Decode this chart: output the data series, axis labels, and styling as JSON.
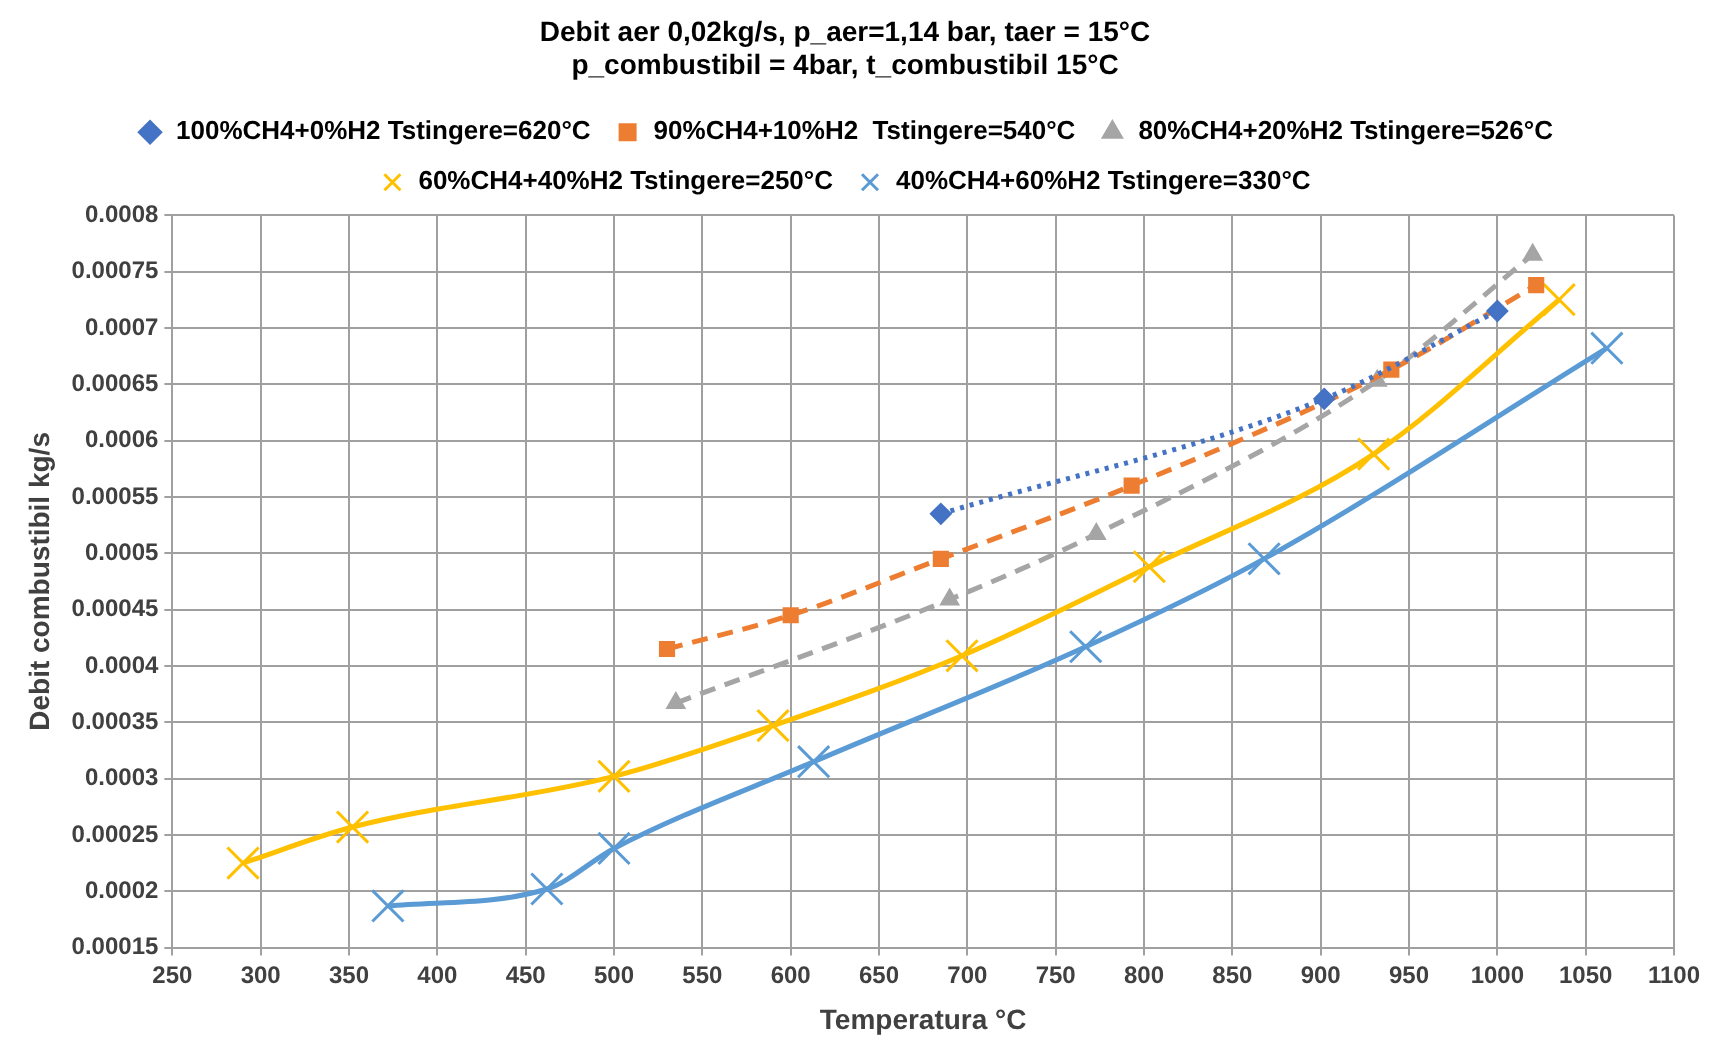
{
  "chart_data": {
    "type": "line",
    "title": [
      "Debit aer 0,02kg/s, p_aer=1,14 bar, taer = 15°C",
      "p_combustibil = 4bar, t_combustibil 15°C"
    ],
    "xlabel": "Temperatura °C",
    "ylabel": "Debit combustibil kg/s",
    "xlim": [
      250,
      1100
    ],
    "xticks": [
      250,
      300,
      350,
      400,
      450,
      500,
      550,
      600,
      650,
      700,
      750,
      800,
      850,
      900,
      950,
      1000,
      1050,
      1100
    ],
    "ylim": [
      0.00015,
      0.0008
    ],
    "yticks": [
      0.00015,
      0.0002,
      0.00025,
      0.0003,
      0.00035,
      0.0004,
      0.00045,
      0.0005,
      0.00055,
      0.0006,
      0.00065,
      0.0007,
      0.00075,
      0.0008
    ],
    "grid": true,
    "legend": "top",
    "series": [
      {
        "name": "100%CH4+0%H2 Tstingere=620°C",
        "color": "#4472c4",
        "marker": "diamond",
        "line_style": "dotted",
        "x": [
          685,
          902,
          1000
        ],
        "values": [
          0.000535,
          0.000637,
          0.000715
        ]
      },
      {
        "name": "90%CH4+10%H2  Tstingere=540°C",
        "color": "#ed7d31",
        "marker": "square",
        "line_style": "dashed",
        "x": [
          530,
          600,
          685,
          793,
          940,
          1022
        ],
        "values": [
          0.000415,
          0.000445,
          0.000495,
          0.00056,
          0.000663,
          0.000738
        ]
      },
      {
        "name": "80%CH4+20%H2 Tstingere=526°C",
        "color": "#a5a5a5",
        "marker": "triangle",
        "line_style": "dashed",
        "x": [
          535,
          690,
          773,
          932,
          1020
        ],
        "values": [
          0.000367,
          0.000459,
          0.000517,
          0.000653,
          0.000765
        ]
      },
      {
        "name": "60%CH4+40%H2 Tstingere=250°C",
        "color": "#ffc000",
        "marker": "cross",
        "line_style": "solid",
        "x": [
          290,
          352,
          500,
          590,
          697,
          803,
          930,
          1035
        ],
        "values": [
          0.000225,
          0.000257,
          0.000302,
          0.000347,
          0.000409,
          0.000488,
          0.000588,
          0.000725
        ]
      },
      {
        "name": "40%CH4+60%H2 Tstingere=330°C",
        "color": "#5b9bd5",
        "marker": "cross",
        "line_style": "solid",
        "x": [
          372,
          462,
          500,
          613,
          767,
          868,
          1062
        ],
        "values": [
          0.000187,
          0.000202,
          0.000238,
          0.000315,
          0.000417,
          0.000495,
          0.000682
        ]
      }
    ]
  }
}
